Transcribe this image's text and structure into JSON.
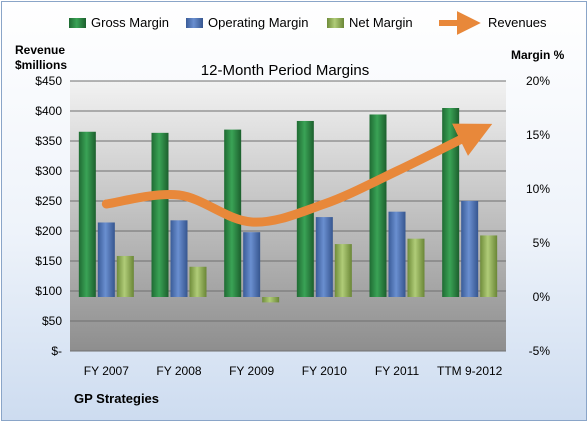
{
  "chart_data": {
    "type": "bar",
    "title": "12-Month Period Margins",
    "company": "GP Strategies",
    "y_left_label_line1": "Revenue",
    "y_left_label_line2": "$millions",
    "y_right_label": "Margin %",
    "y_left_ticks": [
      "$-",
      "$50",
      "$100",
      "$150",
      "$200",
      "$250",
      "$300",
      "$350",
      "$400",
      "$450"
    ],
    "y_right_ticks": [
      "-5%",
      "0%",
      "5%",
      "10%",
      "15%",
      "20%"
    ],
    "ylim_left": [
      0,
      450
    ],
    "ylim_right": [
      -5,
      20
    ],
    "grid": true,
    "legend_position": "top",
    "categories": [
      "FY 2007",
      "FY 2008",
      "FY 2009",
      "FY 2010",
      "FY 2011",
      "TTM 9-2012"
    ],
    "series": [
      {
        "name": "Gross Margin",
        "type": "bar",
        "axis": "right",
        "color": "#2e8b45",
        "values": [
          15.3,
          15.2,
          15.5,
          16.3,
          16.9,
          17.5
        ]
      },
      {
        "name": "Operating Margin",
        "type": "bar",
        "axis": "right",
        "color": "#4f74b6",
        "values": [
          6.9,
          7.1,
          6.0,
          7.4,
          7.9,
          8.9
        ]
      },
      {
        "name": "Net Margin",
        "type": "bar",
        "axis": "right",
        "color": "#93b459",
        "values": [
          3.8,
          2.8,
          -0.5,
          4.9,
          5.4,
          5.7
        ]
      },
      {
        "name": "Revenues",
        "type": "line",
        "axis": "left",
        "color": "#e8883a",
        "values": [
          245,
          260,
          215,
          245,
          300,
          360
        ]
      }
    ]
  }
}
